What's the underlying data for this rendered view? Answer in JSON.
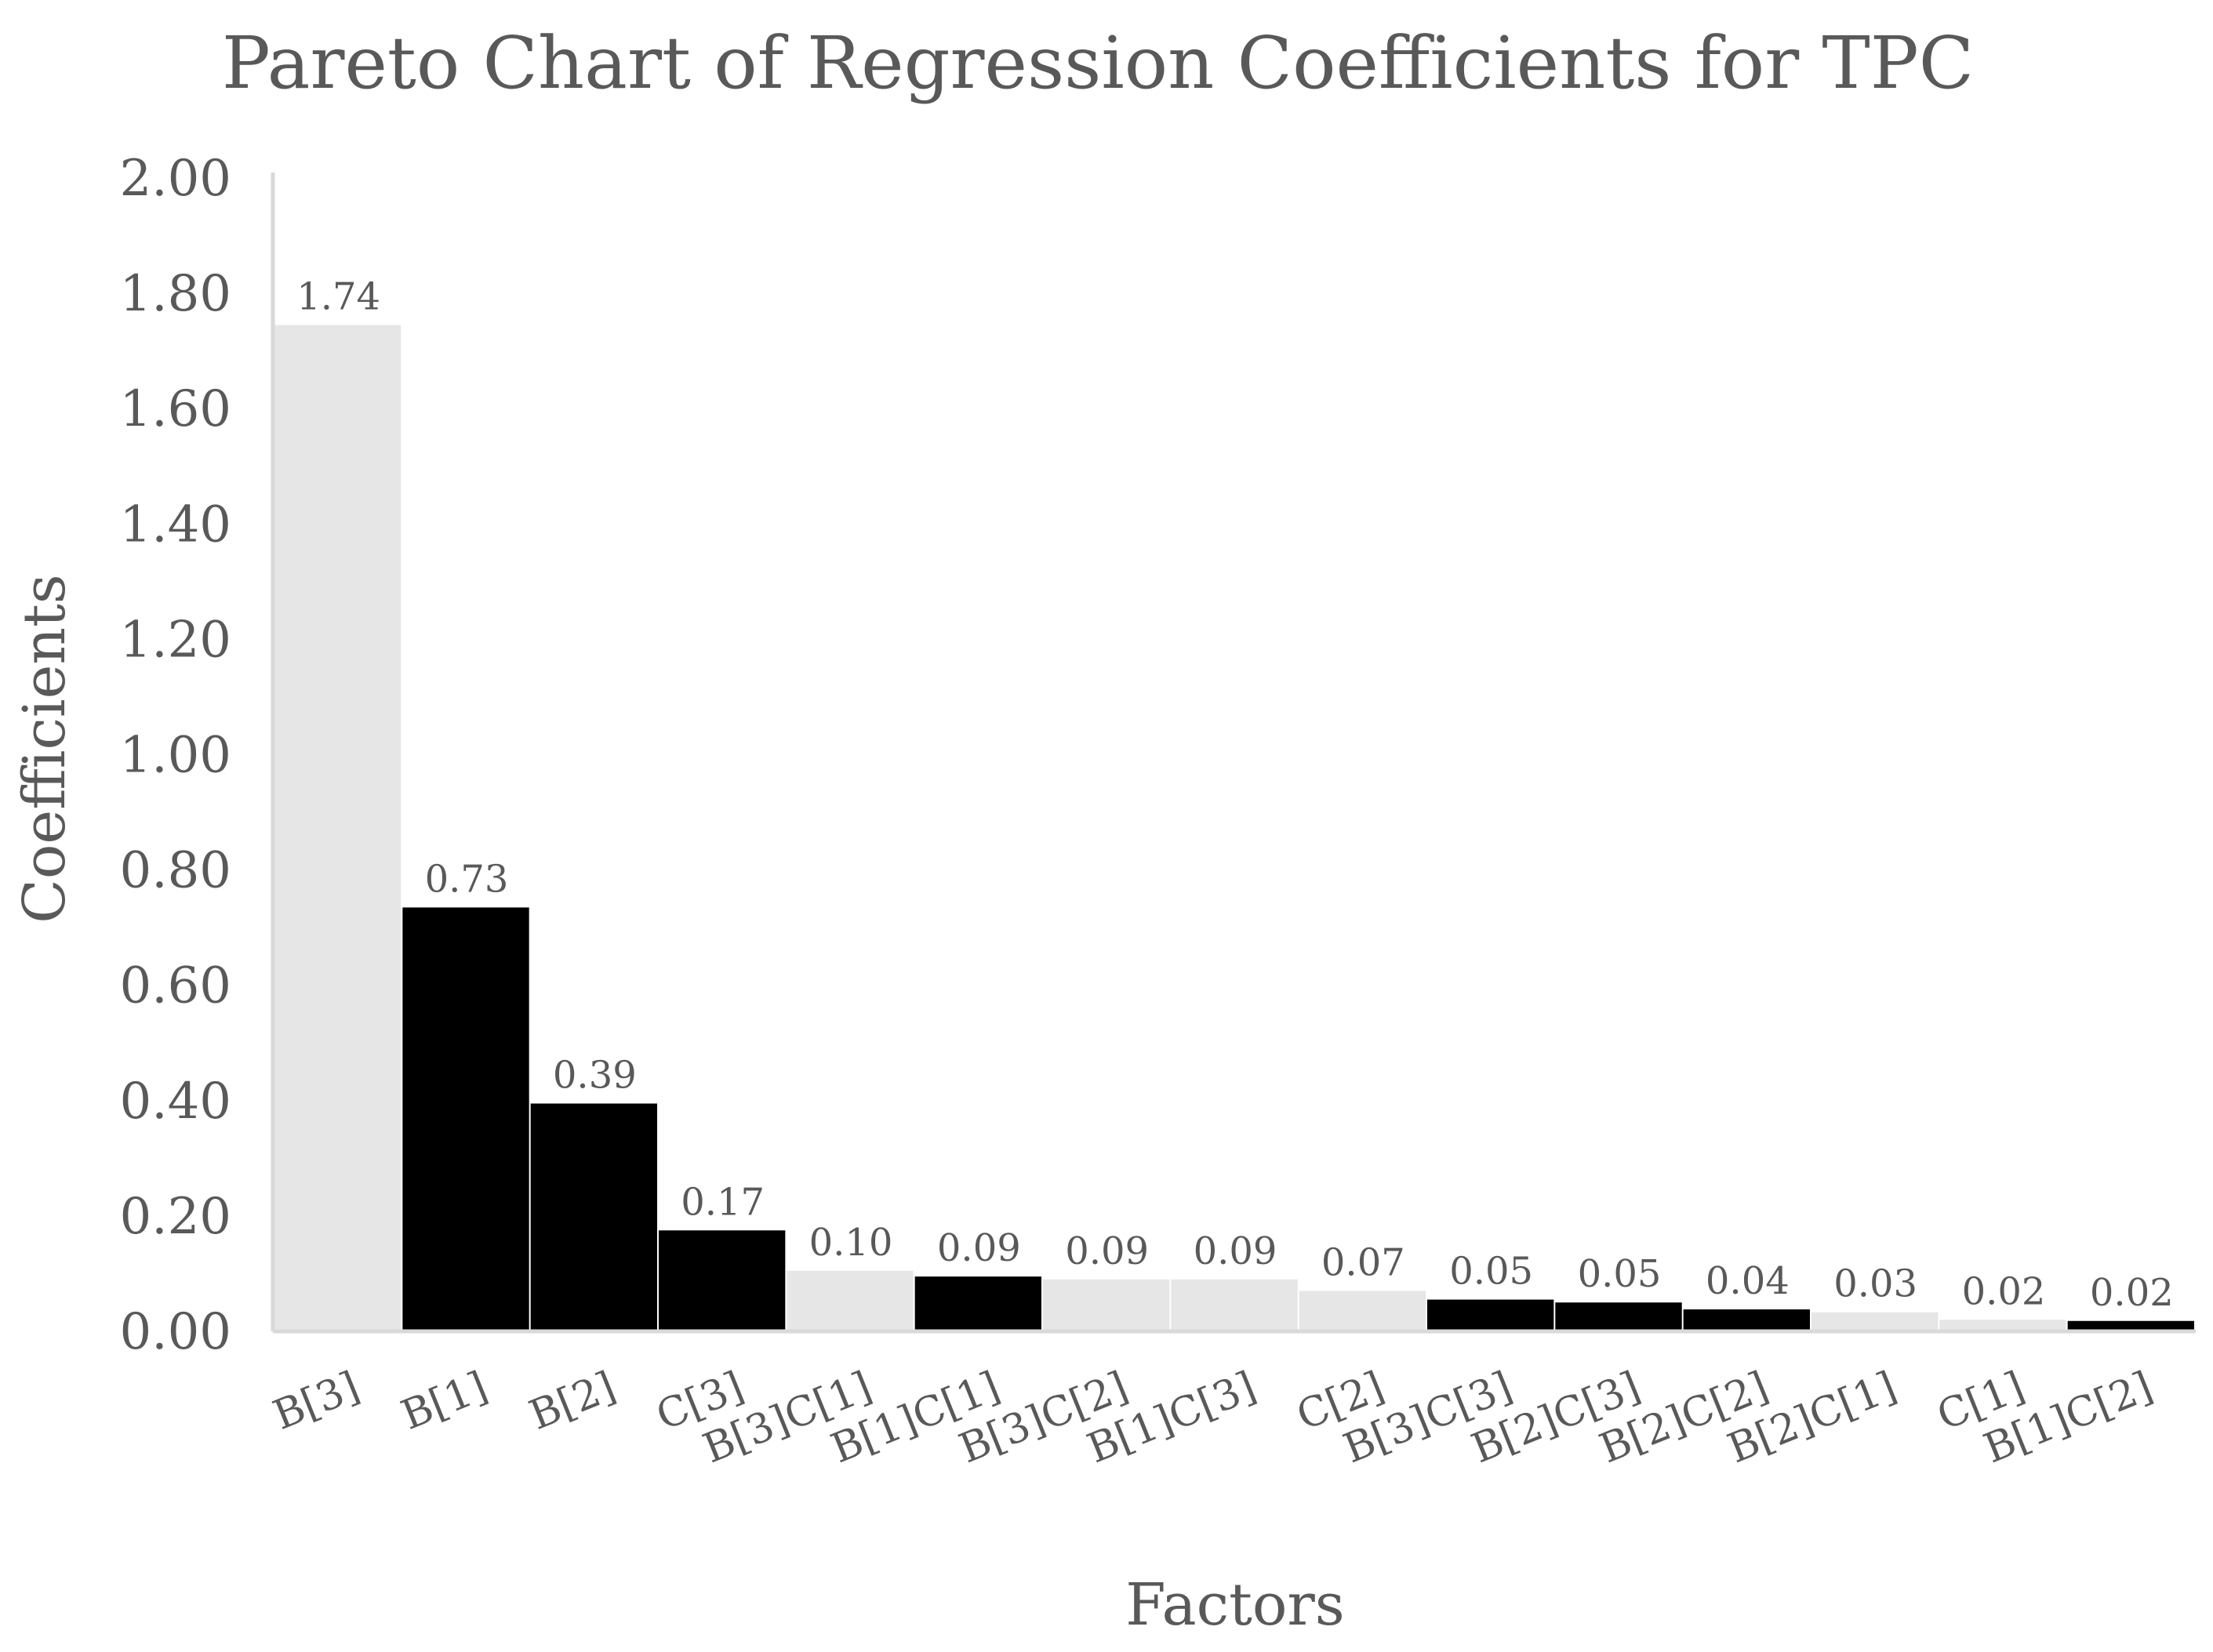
{
  "chart_data": {
    "type": "bar",
    "title": "Pareto Chart of Regression Coefficients for TPC",
    "xlabel": "Factors",
    "ylabel": "Coefficients",
    "ylim": [
      0,
      2.0
    ],
    "ytick_labels": [
      "0.00",
      "0.20",
      "0.40",
      "0.60",
      "0.80",
      "1.00",
      "1.20",
      "1.40",
      "1.60",
      "1.80",
      "2.00"
    ],
    "grid": false,
    "legend": "none",
    "categories": [
      "B[3]",
      "B[1]",
      "B[2]",
      "C[3]",
      "B[3]C[1]",
      "B[1]C[1]",
      "B[3]C[2]",
      "B[1]C[3]",
      "C[2]",
      "B[3]C[3]",
      "B[2]C[3]",
      "B[2]C[2]",
      "B[2]C[1]",
      "C[1]",
      "B[1]C[2]"
    ],
    "values": [
      1.745,
      0.735,
      0.395,
      0.175,
      0.105,
      0.095,
      0.09,
      0.09,
      0.07,
      0.055,
      0.05,
      0.038,
      0.033,
      0.02,
      0.018
    ],
    "data_labels": [
      "1.74",
      "0.73",
      "0.39",
      "0.17",
      "0.10",
      "0.09",
      "0.09",
      "0.09",
      "0.07",
      "0.05",
      "0.05",
      "0.04",
      "0.03",
      "0.02",
      "0.02"
    ],
    "bar_colors": [
      "#e6e6e6",
      "#000000",
      "#000000",
      "#000000",
      "#e6e6e6",
      "#000000",
      "#e6e6e6",
      "#e6e6e6",
      "#e6e6e6",
      "#000000",
      "#000000",
      "#000000",
      "#e6e6e6",
      "#e6e6e6",
      "#000000"
    ]
  }
}
